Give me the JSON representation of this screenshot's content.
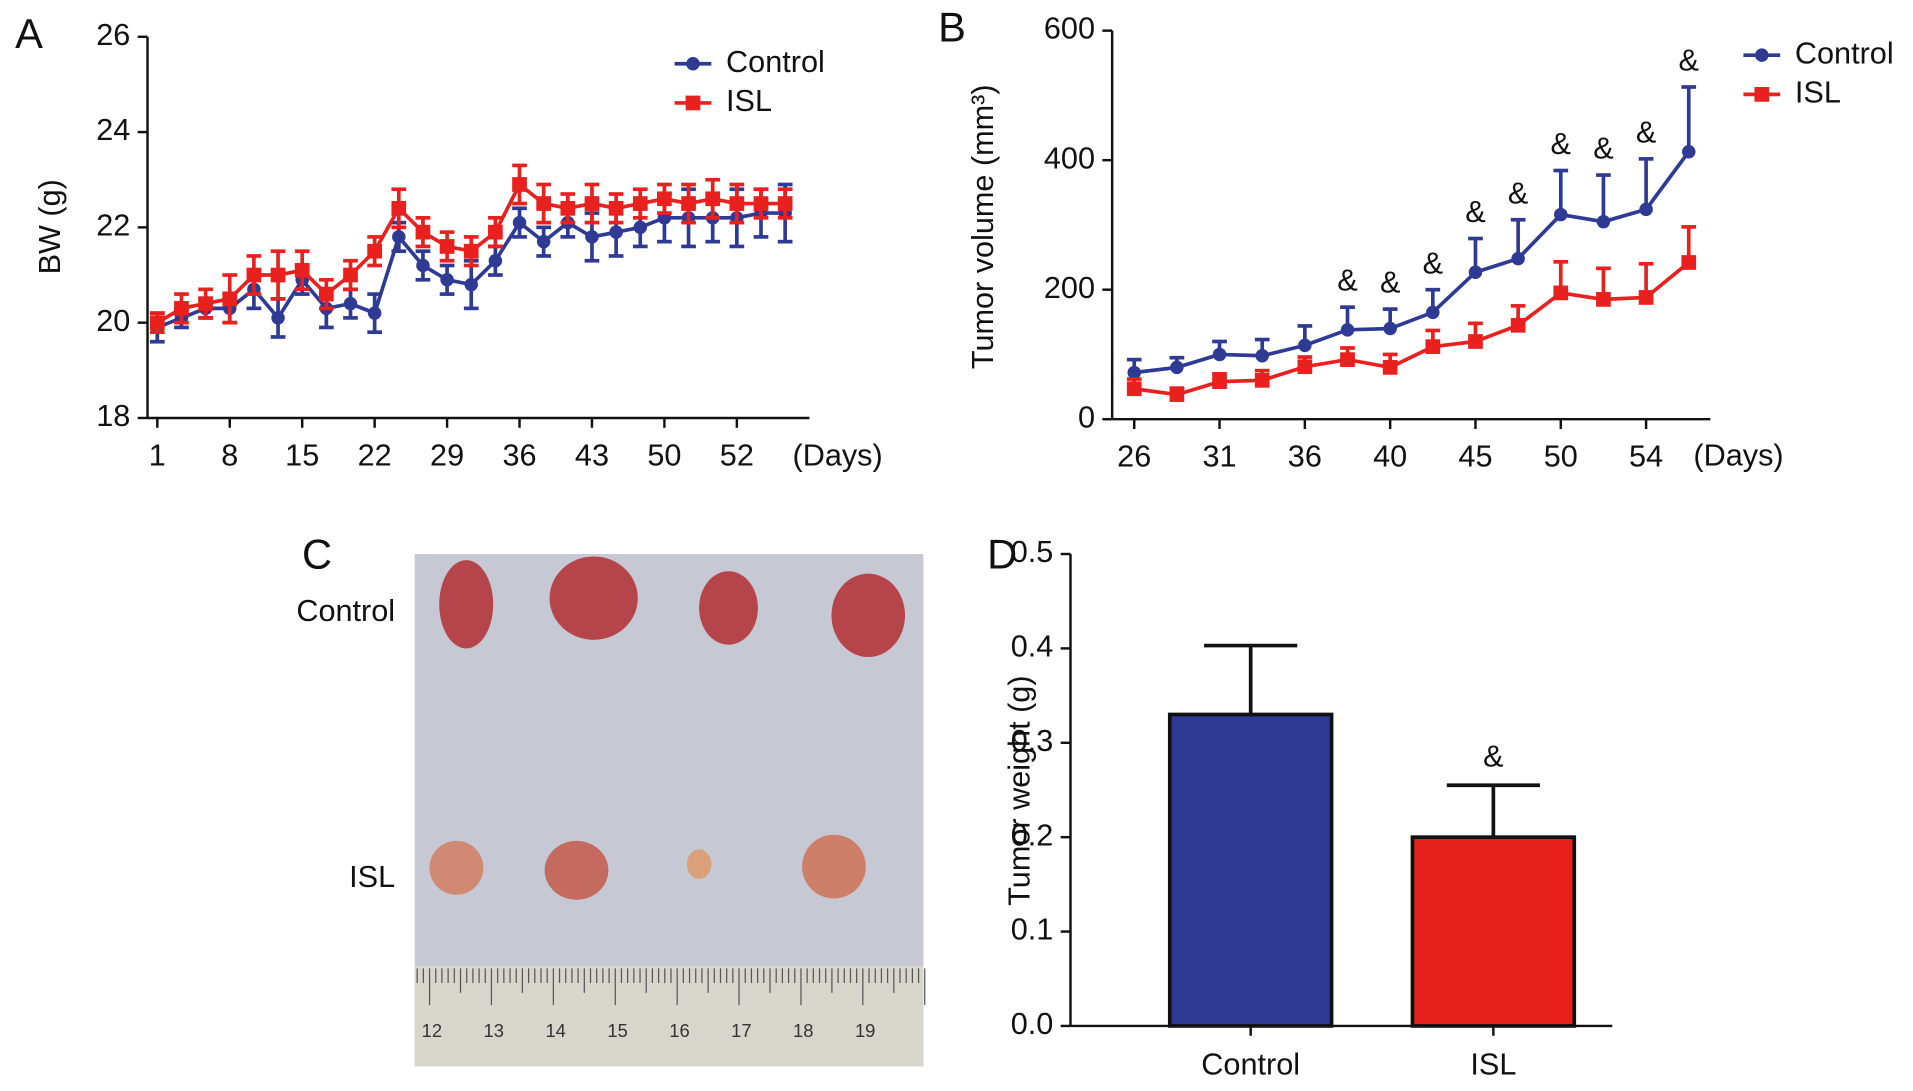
{
  "chart_data": [
    {
      "panel": "A",
      "type": "line",
      "ylabel": "BW (g)",
      "xlabel": "(Days)",
      "categories": [
        "1",
        null,
        null,
        "8",
        null,
        null,
        "15",
        null,
        null,
        "22",
        null,
        null,
        "29",
        null,
        null,
        "36",
        null,
        null,
        "43",
        null,
        null,
        "50",
        null,
        null,
        "52",
        null,
        null
      ],
      "series": [
        {
          "name": "Control",
          "color": "#2e3a93",
          "symbol": "circle",
          "values": [
            19.9,
            20.1,
            20.3,
            20.3,
            20.7,
            20.1,
            20.9,
            20.3,
            20.4,
            20.2,
            21.8,
            21.2,
            20.9,
            20.8,
            21.3,
            22.1,
            21.7,
            22.1,
            21.8,
            21.9,
            22.0,
            22.2,
            22.2,
            22.2,
            22.2,
            22.3,
            22.3
          ],
          "errors": [
            0.3,
            0.2,
            0.2,
            0.3,
            0.4,
            0.4,
            0.3,
            0.4,
            0.3,
            0.4,
            0.3,
            0.3,
            0.3,
            0.5,
            0.3,
            0.3,
            0.3,
            0.3,
            0.5,
            0.5,
            0.4,
            0.5,
            0.6,
            0.5,
            0.6,
            0.5,
            0.6
          ]
        },
        {
          "name": "ISL",
          "color": "#e8201e",
          "symbol": "square",
          "values": [
            20.0,
            20.3,
            20.4,
            20.5,
            21.0,
            21.0,
            21.1,
            20.6,
            21.0,
            21.5,
            22.4,
            21.9,
            21.6,
            21.5,
            21.9,
            22.9,
            22.5,
            22.4,
            22.5,
            22.4,
            22.5,
            22.6,
            22.5,
            22.6,
            22.5,
            22.5,
            22.5
          ],
          "errors": [
            0.2,
            0.3,
            0.3,
            0.5,
            0.4,
            0.5,
            0.4,
            0.3,
            0.3,
            0.3,
            0.4,
            0.3,
            0.3,
            0.3,
            0.3,
            0.4,
            0.4,
            0.3,
            0.4,
            0.3,
            0.3,
            0.3,
            0.4,
            0.4,
            0.4,
            0.3,
            0.3
          ]
        }
      ],
      "errorbars": "both",
      "ylim": [
        18,
        26
      ],
      "yticks": [
        18,
        20,
        22,
        24,
        26
      ]
    },
    {
      "panel": "B",
      "type": "line",
      "ylabel": "Tumor volume (mm³)",
      "xlabel": "(Days)",
      "categories": [
        "26",
        null,
        "31",
        null,
        "36",
        null,
        "40",
        null,
        "45",
        null,
        "50",
        null,
        "54",
        null
      ],
      "series": [
        {
          "name": "Control",
          "color": "#2e3a93",
          "symbol": "circle",
          "values": [
            72,
            80,
            100,
            98,
            114,
            138,
            140,
            165,
            227,
            248,
            316,
            305,
            324,
            413
          ],
          "errors": [
            20,
            15,
            20,
            25,
            30,
            35,
            30,
            35,
            52,
            60,
            68,
            72,
            78,
            100
          ],
          "markers": [
            null,
            null,
            null,
            null,
            null,
            "&",
            "&",
            "&",
            "&",
            "&",
            "&",
            "&",
            "&",
            "&"
          ]
        },
        {
          "name": "ISL",
          "color": "#e8201e",
          "symbol": "square",
          "values": [
            47,
            38,
            58,
            60,
            81,
            92,
            80,
            112,
            120,
            145,
            195,
            185,
            188,
            242
          ],
          "errors": [
            15,
            10,
            12,
            15,
            15,
            18,
            20,
            25,
            28,
            30,
            48,
            48,
            52,
            55
          ]
        }
      ],
      "errorbars": "up",
      "ylim": [
        0,
        600
      ],
      "yticks": [
        0,
        200,
        400,
        600
      ]
    },
    {
      "panel": "D",
      "type": "bar",
      "ylabel": "Tumor weight (g)",
      "categories": [
        "Control",
        "ISL"
      ],
      "values": [
        0.33,
        0.2
      ],
      "errors": [
        0.073,
        0.055
      ],
      "markers": [
        null,
        "&"
      ],
      "colors": [
        "#2e3a93",
        "#e8201e"
      ],
      "errorbars": "up",
      "ylim": [
        0,
        0.5
      ],
      "yticks": [
        {
          "value": 0,
          "label": "0.0"
        },
        0.1,
        0.2,
        0.3,
        0.4,
        0.5
      ]
    }
  ],
  "photo": {
    "panel": "C",
    "row_labels": [
      "Control",
      "ISL"
    ],
    "ruler_labels": [
      "12",
      "13",
      "14",
      "15",
      "16",
      "17",
      "18",
      "19"
    ]
  }
}
